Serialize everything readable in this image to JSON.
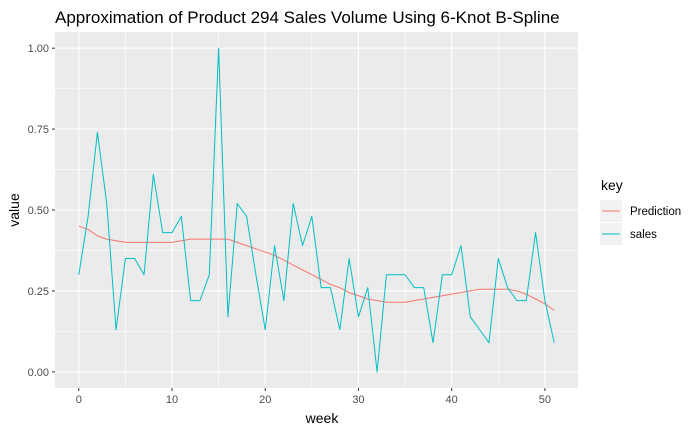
{
  "chart_data": {
    "type": "line",
    "title": "Approximation of Product 294 Sales Volume Using 6-Knot B-Spline",
    "xlabel": "week",
    "ylabel": "value",
    "xlim": [
      -2.55,
      53.55
    ],
    "ylim": [
      -0.05,
      1.05
    ],
    "xticks": [
      0,
      10,
      20,
      30,
      40,
      50
    ],
    "xtick_labels": [
      "0",
      "10",
      "20",
      "30",
      "40",
      "50"
    ],
    "yticks": [
      0,
      0.25,
      0.5,
      0.75,
      1.0
    ],
    "ytick_labels": [
      "0.00",
      "0.25",
      "0.50",
      "0.75",
      "1.00"
    ],
    "grid": true,
    "legend": {
      "title": "key",
      "position": "right"
    },
    "x": [
      0,
      1,
      2,
      3,
      4,
      5,
      6,
      7,
      8,
      9,
      10,
      11,
      12,
      13,
      14,
      15,
      16,
      17,
      18,
      19,
      20,
      21,
      22,
      23,
      24,
      25,
      26,
      27,
      28,
      29,
      30,
      31,
      32,
      33,
      34,
      35,
      36,
      37,
      38,
      39,
      40,
      41,
      42,
      43,
      44,
      45,
      46,
      47,
      48,
      49,
      50,
      51
    ],
    "series": [
      {
        "name": "Prediction",
        "color": "#F8766D",
        "values": [
          0.45,
          0.44,
          0.42,
          0.41,
          0.405,
          0.4,
          0.4,
          0.4,
          0.4,
          0.4,
          0.4,
          0.405,
          0.41,
          0.41,
          0.41,
          0.41,
          0.41,
          0.4,
          0.39,
          0.38,
          0.37,
          0.36,
          0.345,
          0.33,
          0.315,
          0.3,
          0.285,
          0.27,
          0.26,
          0.245,
          0.235,
          0.225,
          0.22,
          0.215,
          0.215,
          0.215,
          0.22,
          0.225,
          0.23,
          0.235,
          0.24,
          0.245,
          0.25,
          0.255,
          0.255,
          0.255,
          0.255,
          0.25,
          0.24,
          0.225,
          0.21,
          0.19
        ]
      },
      {
        "name": "sales",
        "color": "#00BFC4",
        "values": [
          0.3,
          0.48,
          0.74,
          0.52,
          0.13,
          0.35,
          0.35,
          0.3,
          0.61,
          0.43,
          0.43,
          0.48,
          0.22,
          0.22,
          0.3,
          1.0,
          0.17,
          0.52,
          0.48,
          0.3,
          0.13,
          0.39,
          0.22,
          0.52,
          0.39,
          0.48,
          0.26,
          0.26,
          0.13,
          0.35,
          0.17,
          0.26,
          0.0,
          0.3,
          0.3,
          0.3,
          0.26,
          0.26,
          0.09,
          0.3,
          0.3,
          0.39,
          0.17,
          0.13,
          0.09,
          0.35,
          0.26,
          0.22,
          0.22,
          0.43,
          0.22,
          0.09
        ]
      }
    ]
  }
}
